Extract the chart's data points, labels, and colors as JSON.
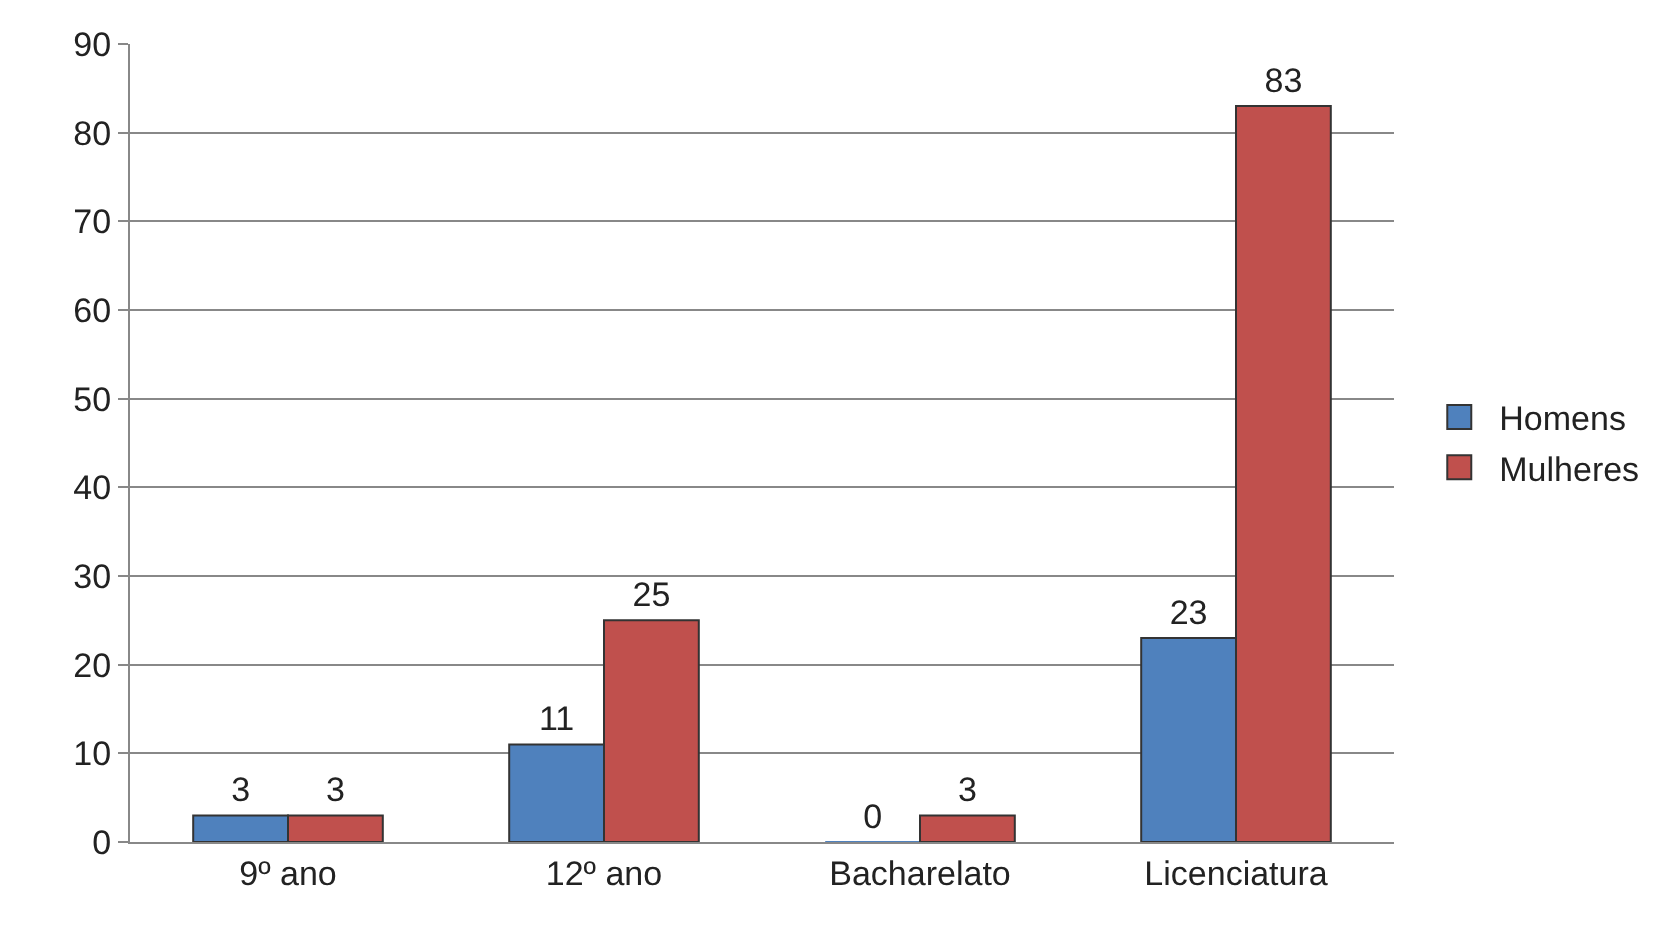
{
  "chart_data": {
    "type": "bar",
    "categories": [
      "9º ano",
      "12º ano",
      "Bacharelato",
      "Licenciatura"
    ],
    "series": [
      {
        "name": "Homens",
        "color": "#4f81bd",
        "values": [
          3,
          11,
          0,
          23
        ]
      },
      {
        "name": "Mulheres",
        "color": "#c0504d",
        "values": [
          3,
          25,
          3,
          83
        ]
      }
    ],
    "ylim": [
      0,
      90
    ],
    "yticks": [
      0,
      10,
      20,
      30,
      40,
      50,
      60,
      70,
      80,
      90
    ],
    "grid": "y",
    "legend": "right",
    "data_labels": true
  }
}
